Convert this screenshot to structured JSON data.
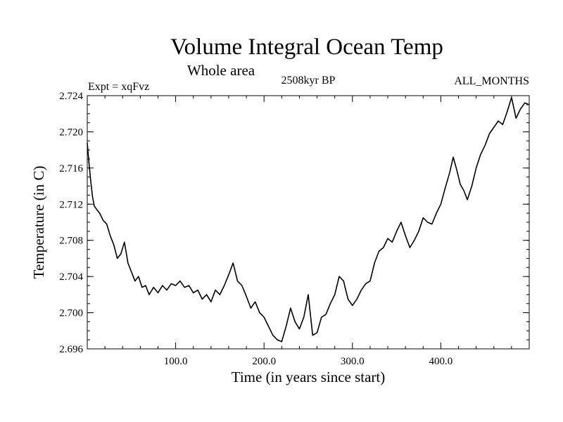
{
  "chart_data": {
    "type": "line",
    "title": "Volume Integral Ocean Temp",
    "subtitle": "Whole area",
    "annotations": {
      "left": "Expt = xqFvz",
      "center": "2508kyr BP",
      "right": "ALL_MONTHS"
    },
    "xlabel": "Time (in years since start)",
    "ylabel": "Temperature (in C)",
    "xlim": [
      0,
      500
    ],
    "ylim": [
      2.696,
      2.724
    ],
    "xticks": [
      100,
      200,
      300,
      400
    ],
    "xtick_labels": [
      "100.0",
      "200.0",
      "300.0",
      "400.0"
    ],
    "yticks": [
      2.696,
      2.7,
      2.704,
      2.708,
      2.712,
      2.716,
      2.72,
      2.724
    ],
    "ytick_labels": [
      "2.696",
      "2.700",
      "2.704",
      "2.708",
      "2.712",
      "2.716",
      "2.720",
      "2.724"
    ],
    "grid": false,
    "series": [
      {
        "name": "Volume integral ocean temperature",
        "color": "#000000",
        "x": [
          0,
          2,
          4,
          6,
          8,
          10,
          14,
          18,
          22,
          26,
          30,
          34,
          38,
          42,
          46,
          50,
          54,
          58,
          62,
          66,
          70,
          75,
          80,
          85,
          90,
          95,
          100,
          105,
          110,
          115,
          120,
          125,
          130,
          135,
          140,
          145,
          150,
          155,
          160,
          165,
          170,
          175,
          180,
          185,
          190,
          195,
          200,
          205,
          210,
          215,
          220,
          225,
          230,
          235,
          240,
          245,
          250,
          255,
          260,
          265,
          270,
          275,
          280,
          285,
          290,
          295,
          300,
          305,
          310,
          315,
          320,
          325,
          330,
          335,
          340,
          345,
          350,
          355,
          360,
          365,
          370,
          375,
          380,
          385,
          390,
          395,
          400,
          405,
          410,
          414,
          418,
          422,
          426,
          430,
          435,
          440,
          445,
          450,
          455,
          460,
          465,
          470,
          475,
          480,
          485,
          490,
          495,
          500
        ],
        "y": [
          2.7188,
          2.7165,
          2.7145,
          2.7128,
          2.7118,
          2.7115,
          2.711,
          2.7102,
          2.7098,
          2.7085,
          2.7075,
          2.706,
          2.7065,
          2.7078,
          2.7055,
          2.7045,
          2.7035,
          2.704,
          2.7028,
          2.703,
          2.702,
          2.7028,
          2.7022,
          2.703,
          2.7025,
          2.7032,
          2.703,
          2.7035,
          2.7028,
          2.703,
          2.7022,
          2.7025,
          2.7015,
          2.702,
          2.7012,
          2.7025,
          2.702,
          2.703,
          2.7042,
          2.7055,
          2.7035,
          2.703,
          2.7018,
          2.7005,
          2.7012,
          2.7,
          2.6995,
          2.6985,
          2.6975,
          2.697,
          2.6968,
          2.6985,
          2.7005,
          2.699,
          2.6982,
          2.6995,
          2.702,
          2.6975,
          2.6978,
          2.6995,
          2.6998,
          2.701,
          2.702,
          2.704,
          2.7035,
          2.7015,
          2.7008,
          2.7015,
          2.7025,
          2.7032,
          2.7035,
          2.7055,
          2.7068,
          2.7072,
          2.7082,
          2.7078,
          2.709,
          2.71,
          2.7085,
          2.7072,
          2.708,
          2.709,
          2.7105,
          2.71,
          2.7098,
          2.711,
          2.712,
          2.7138,
          2.7155,
          2.7172,
          2.7158,
          2.7142,
          2.7135,
          2.7125,
          2.714,
          2.716,
          2.7175,
          2.7185,
          2.7198,
          2.7205,
          2.7212,
          2.7208,
          2.7222,
          2.7238,
          2.7215,
          2.7225,
          2.7232,
          2.723
        ]
      }
    ]
  }
}
